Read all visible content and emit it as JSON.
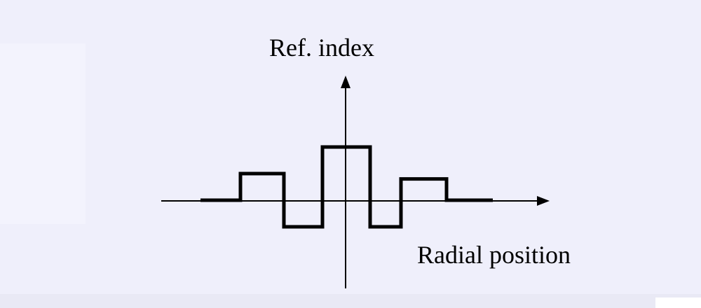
{
  "diagram": {
    "y_axis_label": "Ref. index",
    "x_axis_label": "Radial position",
    "profile_levels": [
      0,
      1,
      -1,
      2,
      -1,
      0.8,
      0
    ],
    "colors": {
      "background": "#efeffb",
      "axis": "#000000",
      "profile": "#000000"
    }
  }
}
